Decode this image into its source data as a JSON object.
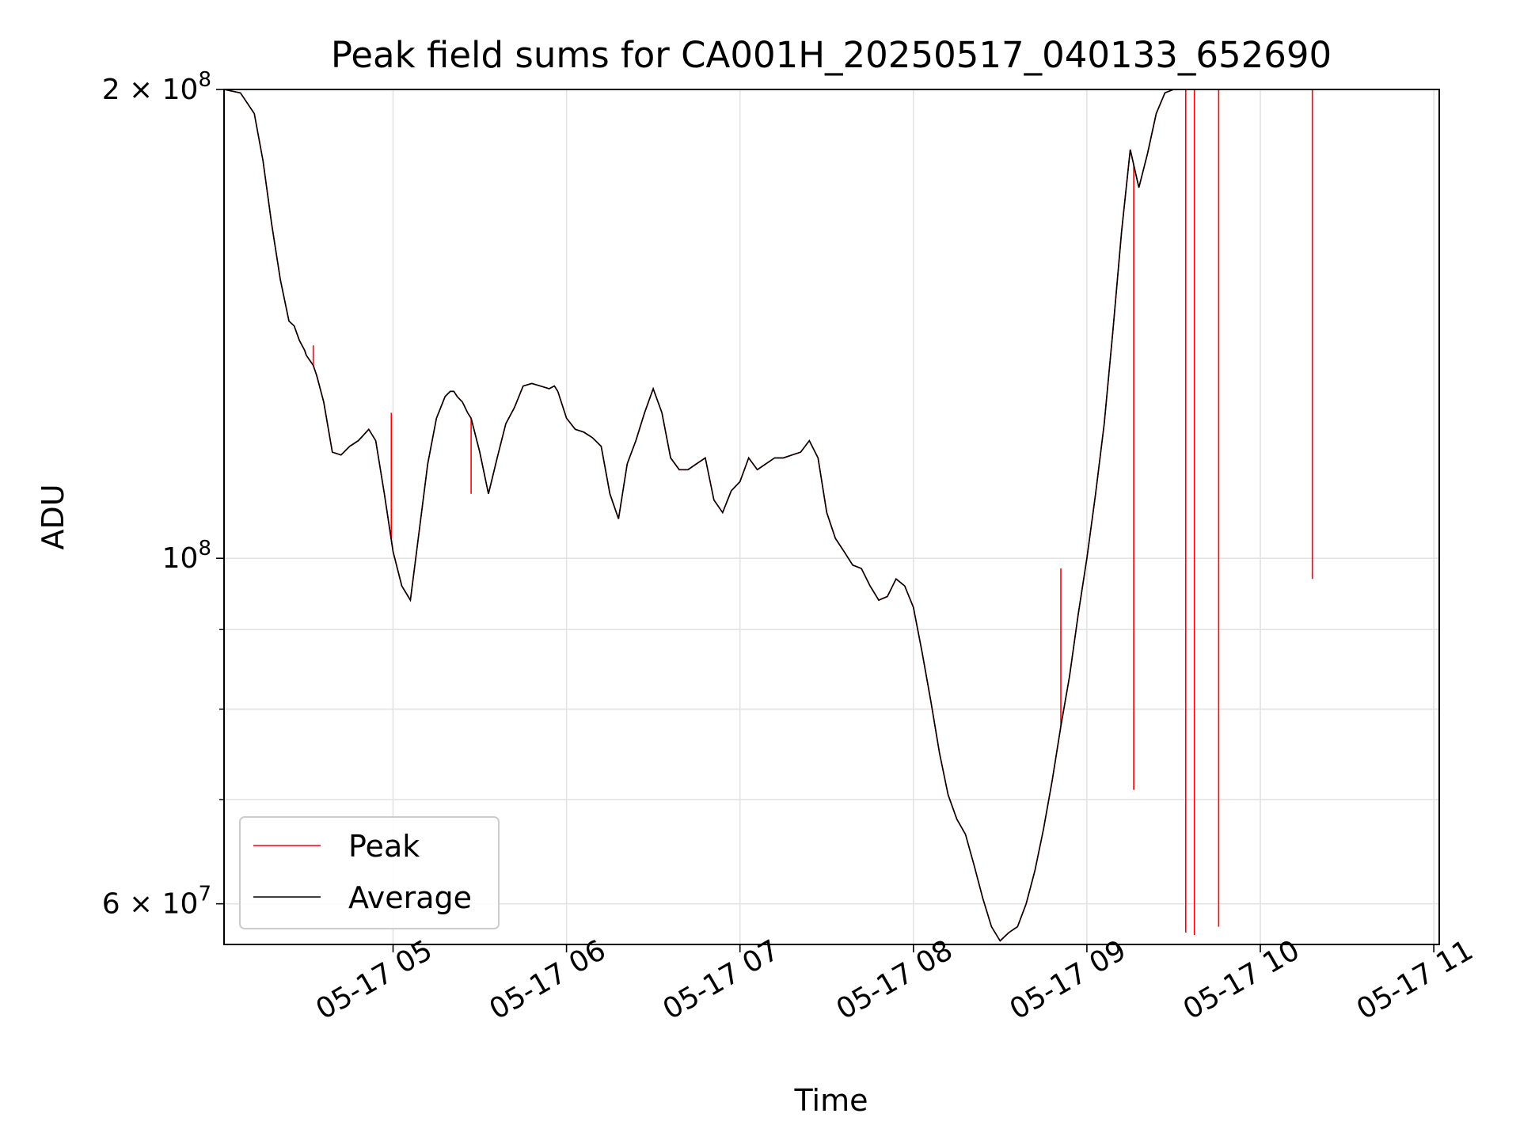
{
  "chart_data": {
    "type": "line",
    "title": "Peak field sums for CA001H_20250517_040133_652690",
    "xlabel": "Time",
    "ylabel": "ADU",
    "yscale": "log",
    "ylim": [
      56500000,
      200000000
    ],
    "xlim_hours": [
      4.04,
      11.05
    ],
    "grid": true,
    "legend_position": "lower-left",
    "colors": {
      "peak": "#ff0000",
      "average": "#000000",
      "grid": "#e3e3e3"
    },
    "x_ticks": [
      {
        "label": "05-17 05",
        "hour": 5
      },
      {
        "label": "05-17 06",
        "hour": 6
      },
      {
        "label": "05-17 07",
        "hour": 7
      },
      {
        "label": "05-17 08",
        "hour": 8
      },
      {
        "label": "05-17 09",
        "hour": 9
      },
      {
        "label": "05-17 10",
        "hour": 10
      },
      {
        "label": "05-17 11",
        "hour": 11
      }
    ],
    "y_major_ticks": [
      {
        "label_base": "2 × 10",
        "label_exp": "8",
        "value": 200000000
      },
      {
        "label_base": "10",
        "label_exp": "8",
        "value": 100000000
      },
      {
        "label_base": "6 × 10",
        "label_exp": "7",
        "value": 60000000
      }
    ],
    "y_minor_ticks": [
      70000000,
      80000000,
      90000000
    ],
    "series": [
      {
        "name": "Average",
        "time_hours": [
          4.02,
          4.12,
          4.2,
          4.25,
          4.3,
          4.35,
          4.4,
          4.43,
          4.46,
          4.49,
          4.5,
          4.52,
          4.54,
          4.56,
          4.6,
          4.65,
          4.7,
          4.75,
          4.8,
          4.83,
          4.86,
          4.9,
          4.95,
          5.0,
          5.05,
          5.1,
          5.15,
          5.2,
          5.25,
          5.3,
          5.33,
          5.35,
          5.37,
          5.4,
          5.43,
          5.45,
          5.5,
          5.55,
          5.6,
          5.65,
          5.7,
          5.75,
          5.8,
          5.85,
          5.9,
          5.93,
          5.95,
          6.0,
          6.05,
          6.1,
          6.15,
          6.2,
          6.25,
          6.3,
          6.35,
          6.4,
          6.45,
          6.5,
          6.55,
          6.6,
          6.65,
          6.7,
          6.75,
          6.8,
          6.85,
          6.9,
          6.95,
          7.0,
          7.05,
          7.1,
          7.15,
          7.2,
          7.25,
          7.3,
          7.35,
          7.4,
          7.45,
          7.5,
          7.55,
          7.6,
          7.65,
          7.7,
          7.75,
          7.8,
          7.85,
          7.9,
          7.95,
          8.0,
          8.05,
          8.1,
          8.15,
          8.2,
          8.25,
          8.3,
          8.35,
          8.4,
          8.45,
          8.5,
          8.55,
          8.6,
          8.65,
          8.7,
          8.75,
          8.8,
          8.85,
          8.9,
          8.95,
          9.0,
          9.05,
          9.1,
          9.15,
          9.2,
          9.25,
          9.3,
          9.35,
          9.4,
          9.45,
          9.5,
          9.55,
          9.6,
          9.65,
          9.7,
          9.75,
          9.8,
          9.85,
          9.9,
          9.95,
          10.0,
          10.05,
          10.1,
          10.15,
          10.2,
          10.25,
          10.3,
          10.35,
          10.4,
          10.45,
          10.5,
          10.55,
          10.6,
          10.62,
          10.65,
          10.7,
          10.75,
          10.8,
          10.85,
          10.9,
          10.95,
          11.0,
          11.05
        ],
        "values": [
          200000000,
          199000000,
          193000000,
          180000000,
          164000000,
          151000000,
          142000000,
          141000000,
          138000000,
          136000000,
          135000000,
          134000000,
          133000000,
          131000000,
          126000000,
          117000000,
          116500000,
          118000000,
          119000000,
          120000000,
          121000000,
          119000000,
          110000000,
          101000000,
          96000000,
          94000000,
          104000000,
          115000000,
          123000000,
          127000000,
          128000000,
          128000000,
          127000000,
          126000000,
          124000000,
          123000000,
          117000000,
          110000000,
          116000000,
          122000000,
          125000000,
          129000000,
          129500000,
          129000000,
          128500000,
          129000000,
          128000000,
          123000000,
          121000000,
          120500000,
          119500000,
          118000000,
          110000000,
          106000000,
          115000000,
          119000000,
          124000000,
          128500000,
          124000000,
          116000000,
          114000000,
          114000000,
          115000000,
          116000000,
          109000000,
          107000000,
          110500000,
          112000000,
          116000000,
          114000000,
          115000000,
          116000000,
          116000000,
          116500000,
          117000000,
          119000000,
          116000000,
          107000000,
          103000000,
          101000000,
          99000000,
          98500000,
          96000000,
          94000000,
          94500000,
          97000000,
          96000000,
          93000000,
          87000000,
          81000000,
          75000000,
          70500000,
          68000000,
          66500000,
          63500000,
          60500000,
          58000000,
          56800000,
          57500000,
          58000000,
          60000000,
          63000000,
          67000000,
          72000000,
          78000000,
          84000000,
          92000000,
          100000000,
          110000000,
          122000000,
          140000000,
          162000000,
          183000000,
          173000000,
          182000000,
          193000000,
          199000000,
          200000000,
          200000000,
          200000000,
          200000000,
          200000000,
          200000000,
          200000000,
          200000000,
          200000000,
          200000000,
          200000000,
          200000000,
          200000000,
          200000000,
          200000000,
          200000000,
          200000000,
          200000000,
          200000000,
          200000000,
          200000000,
          200000000,
          200000000,
          200000000,
          200000000,
          200000000,
          200000000,
          200000000,
          200000000,
          200000000,
          200000000,
          200000000,
          200000000,
          200000000,
          200000000
        ]
      },
      {
        "name": "Peak",
        "spikes": [
          {
            "hour": 4.54,
            "value": 137000000
          },
          {
            "hour": 4.99,
            "value": 124000000
          },
          {
            "hour": 5.45,
            "value": 110000000
          },
          {
            "hour": 8.85,
            "value": 98500000
          },
          {
            "hour": 9.27,
            "value": 71000000
          },
          {
            "hour": 9.57,
            "value": 57500000
          },
          {
            "hour": 9.62,
            "value": 57300000
          },
          {
            "hour": 9.76,
            "value": 58000000
          },
          {
            "hour": 10.3,
            "value": 97000000
          }
        ]
      }
    ]
  }
}
